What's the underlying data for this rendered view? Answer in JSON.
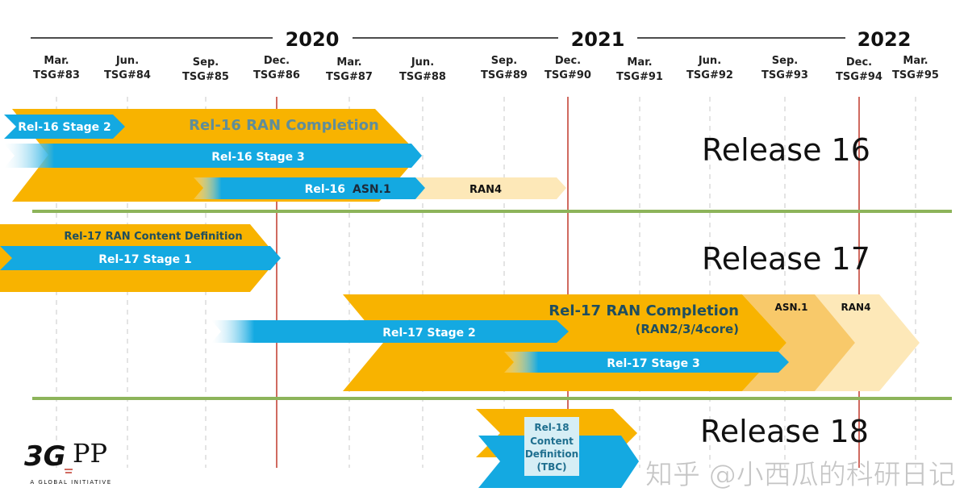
{
  "timeline": {
    "years": [
      "2020",
      "2021",
      "2022"
    ],
    "meetings": [
      {
        "month": "Mar.",
        "tsg": "TSG#83"
      },
      {
        "month": "Jun.",
        "tsg": "TSG#84"
      },
      {
        "month": "Sep.",
        "tsg": "TSG#85"
      },
      {
        "month": "Dec.",
        "tsg": "TSG#86"
      },
      {
        "month": "Mar.",
        "tsg": "TSG#87"
      },
      {
        "month": "Jun.",
        "tsg": "TSG#88"
      },
      {
        "month": "Sep.",
        "tsg": "TSG#89"
      },
      {
        "month": "Dec.",
        "tsg": "TSG#90"
      },
      {
        "month": "Mar.",
        "tsg": "TSG#91"
      },
      {
        "month": "Jun.",
        "tsg": "TSG#92"
      },
      {
        "month": "Sep.",
        "tsg": "TSG#93"
      },
      {
        "month": "Dec.",
        "tsg": "TSG#94"
      },
      {
        "month": "Mar.",
        "tsg": "TSG#95"
      }
    ]
  },
  "rel16": {
    "title": "Release 16",
    "ran_completion": "Rel-16 RAN Completion",
    "stage2": "Rel-16 Stage 2",
    "stage3": "Rel-16 Stage 3",
    "asn1_prefix": "Rel-16",
    "asn1": "ASN.1",
    "ran4": "RAN4"
  },
  "rel17": {
    "title": "Release 17",
    "content_def": "Rel-17 RAN Content Definition",
    "stage1": "Rel-17 Stage 1",
    "ran_completion": "Rel-17 RAN Completion",
    "ran_completion_sub": "(RAN2/3/4core)",
    "stage2": "Rel-17 Stage 2",
    "stage3": "Rel-17 Stage 3",
    "asn1": "ASN.1",
    "ran4": "RAN4"
  },
  "rel18": {
    "title": "Release 18",
    "box": [
      "Rel-18",
      "Content",
      "Definition",
      "(TBC)"
    ]
  },
  "logo": {
    "name": "3GPP",
    "tagline": "A GLOBAL INITIATIVE"
  },
  "watermark": "知乎 @小西瓜的科研日记",
  "colors": {
    "orange": "#f8b300",
    "blue": "#14a9e1",
    "separator": "#8db45a",
    "milestone": "#c0392b",
    "asn1": "#f8c96a",
    "ran4": "#fde8b8"
  }
}
